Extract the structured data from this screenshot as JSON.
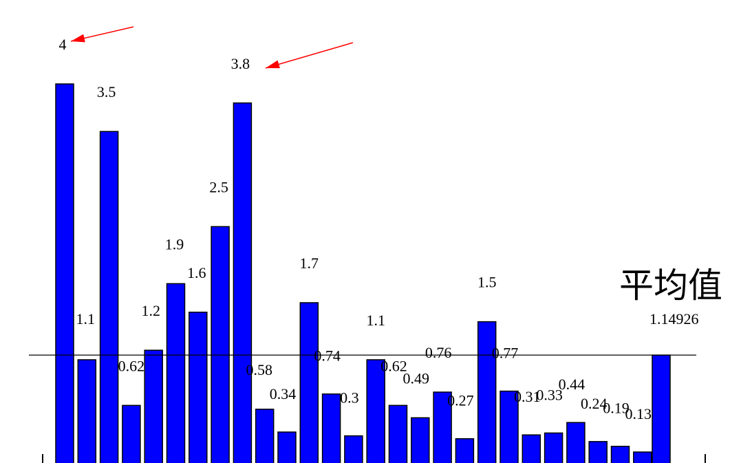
{
  "chart_data": {
    "type": "bar",
    "values": [
      4,
      1.1,
      3.5,
      0.62,
      1.2,
      1.9,
      1.6,
      2.5,
      3.8,
      0.58,
      0.34,
      1.7,
      0.74,
      0.3,
      1.1,
      0.62,
      0.49,
      0.76,
      0.27,
      1.5,
      0.77,
      0.31,
      0.33,
      0.44,
      0.24,
      0.19,
      0.13
    ],
    "labels": [
      "4",
      "1.1",
      "3.5",
      "0.62",
      "1.2",
      "1.9",
      "1.6",
      "2.5",
      "3.8",
      "0.58",
      "0.34",
      "1.7",
      "0.74",
      "0.3",
      "1.1",
      "0.62",
      "0.49",
      "0.76",
      "0.27",
      "1.5",
      "0.77",
      "0.31",
      "0.33",
      "0.44",
      "0.24",
      "0.19",
      "0.13"
    ],
    "average": {
      "title": "平均值",
      "value": 1.14926,
      "value_label": "1.14926"
    },
    "highlighted_labels": [
      "4",
      "3.8"
    ],
    "colors": {
      "bar": "#0000ff",
      "arrow": "#ff0000",
      "line": "#000000"
    },
    "ylim": [
      0,
      4.2
    ],
    "grid": false
  }
}
